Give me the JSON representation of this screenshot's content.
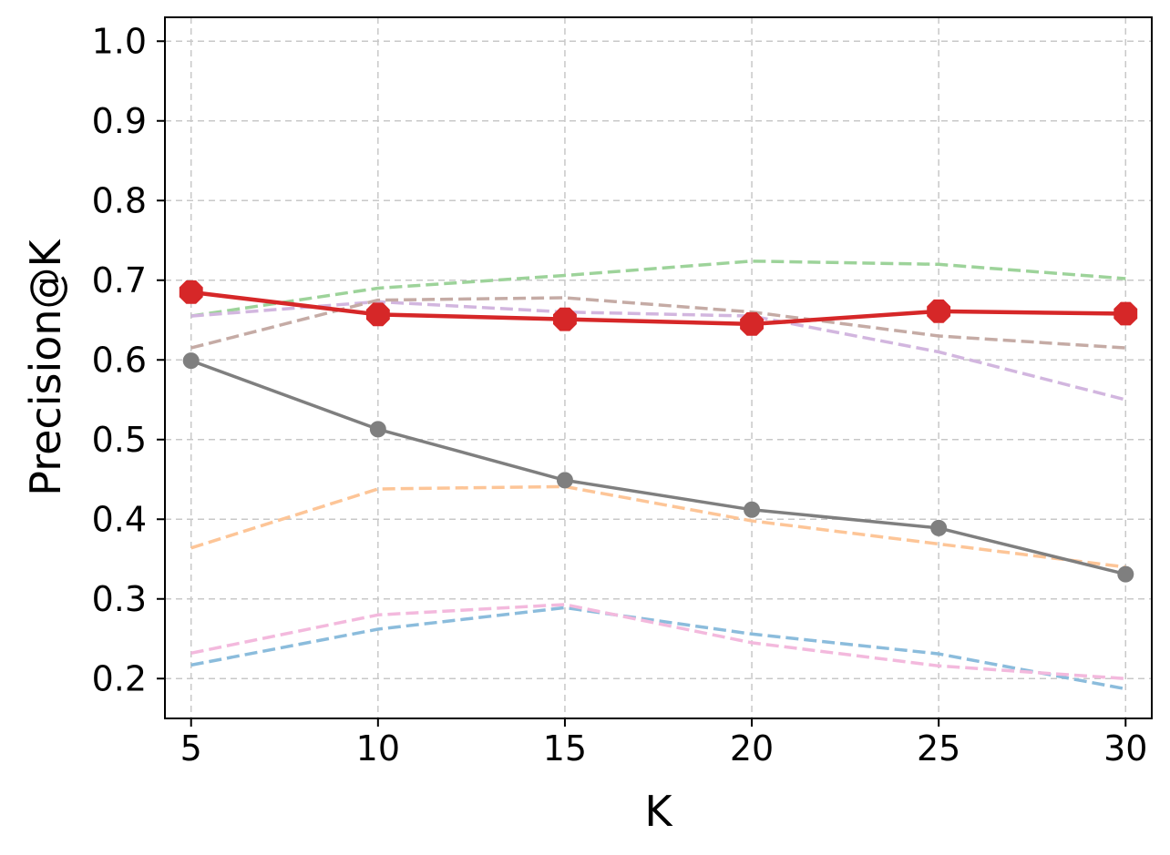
{
  "chart_data": {
    "type": "line",
    "xlabel": "K",
    "ylabel": "Precision@K",
    "x": [
      5,
      10,
      15,
      20,
      25,
      30
    ],
    "xlim": [
      4.3,
      30.7
    ],
    "ylim": [
      0.15,
      1.03
    ],
    "xticks": [
      5,
      10,
      15,
      20,
      25,
      30
    ],
    "xtick_labels": [
      "5",
      "10",
      "15",
      "20",
      "25",
      "30"
    ],
    "yticks": [
      0.2,
      0.3,
      0.4,
      0.5,
      0.6,
      0.7,
      0.8,
      0.9,
      1.0
    ],
    "ytick_labels": [
      "0.2",
      "0.3",
      "0.4",
      "0.5",
      "0.6",
      "0.7",
      "0.8",
      "0.9",
      "1.0"
    ],
    "grid": true,
    "series": [
      {
        "values": [
          0.217,
          0.262,
          0.289,
          0.256,
          0.231,
          0.187
        ],
        "color": "#8bbcdc",
        "style": "dashed",
        "marker": "none"
      },
      {
        "values": [
          0.364,
          0.438,
          0.441,
          0.398,
          0.369,
          0.34
        ],
        "color": "#fdc597",
        "style": "dashed",
        "marker": "none"
      },
      {
        "values": [
          0.655,
          0.69,
          0.706,
          0.724,
          0.72,
          0.702
        ],
        "color": "#9dd39a",
        "style": "dashed",
        "marker": "none"
      },
      {
        "values": [
          0.655,
          0.673,
          0.66,
          0.655,
          0.61,
          0.55
        ],
        "color": "#d2b6df",
        "style": "dashed",
        "marker": "none"
      },
      {
        "values": [
          0.615,
          0.675,
          0.678,
          0.66,
          0.63,
          0.615
        ],
        "color": "#c5aba5",
        "style": "dashed",
        "marker": "none"
      },
      {
        "values": [
          0.232,
          0.28,
          0.293,
          0.245,
          0.216,
          0.2
        ],
        "color": "#f3b9dd",
        "style": "dashed",
        "marker": "none"
      },
      {
        "values": [
          0.599,
          0.513,
          0.449,
          0.412,
          0.389,
          0.331
        ],
        "color": "#7f7f7f",
        "style": "solid",
        "marker": "circle"
      },
      {
        "values": [
          0.685,
          0.657,
          0.651,
          0.645,
          0.661,
          0.658
        ],
        "color": "#d62728",
        "style": "solid",
        "marker": "octagon"
      }
    ]
  }
}
